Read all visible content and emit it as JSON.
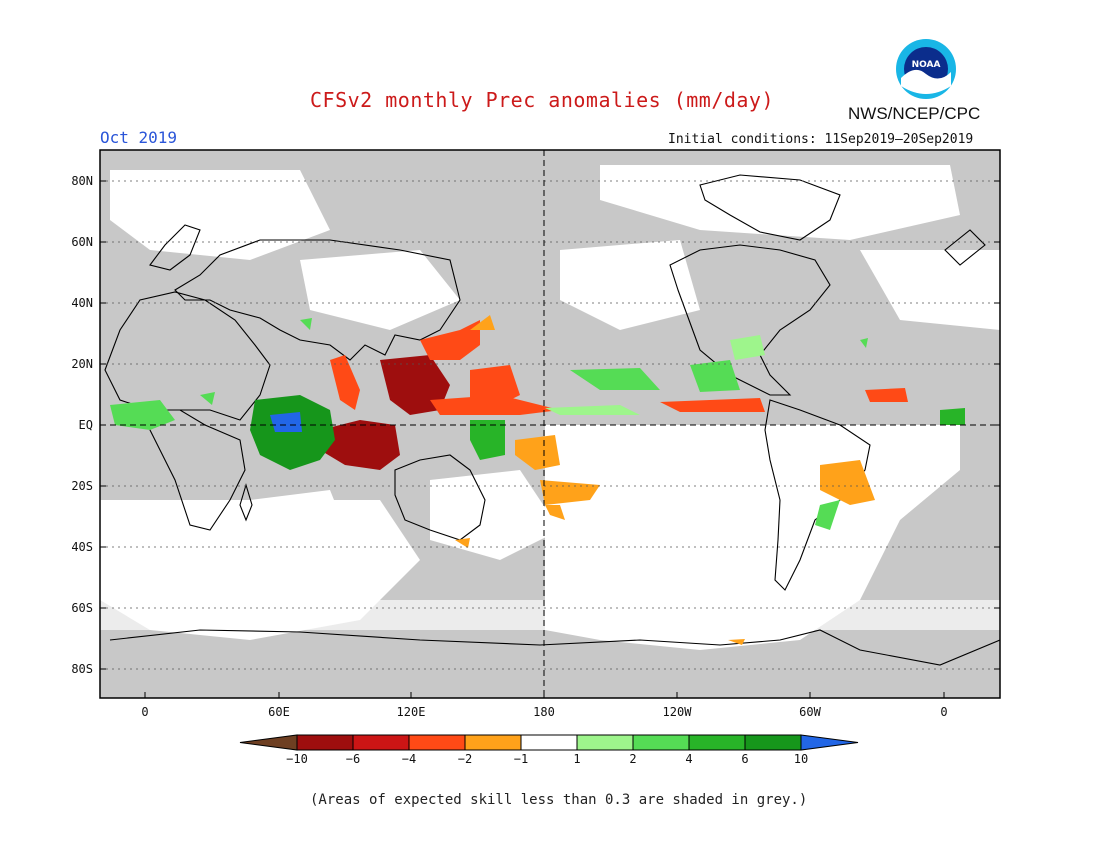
{
  "title": "CFSv2 monthly Prec anomalies (mm/day)",
  "organization": "NWS/NCEP/CPC",
  "logo_text": "NOAA",
  "month_label": "Oct 2019",
  "initial_conditions": "Initial conditions: 11Sep2019–20Sep2019",
  "map": {
    "lat_labels": [
      "80N",
      "60N",
      "40N",
      "20N",
      "EQ",
      "20S",
      "40S",
      "60S",
      "80S"
    ],
    "lon_labels": [
      "0",
      "60E",
      "120E",
      "180",
      "120W",
      "60W",
      "0"
    ]
  },
  "legend": {
    "colors": [
      "#6e3f22",
      "#9e0e0e",
      "#cc1515",
      "#ff4a16",
      "#ffa21a",
      "#ffffff",
      "#9ef58c",
      "#55dc55",
      "#28b428",
      "#16961b",
      "#2266e6"
    ],
    "labels": [
      "−10",
      "−6",
      "−4",
      "−2",
      "−1",
      "1",
      "2",
      "4",
      "6",
      "10"
    ]
  },
  "footnote": "(Areas of expected skill less than 0.3 are shaded in grey.)"
}
